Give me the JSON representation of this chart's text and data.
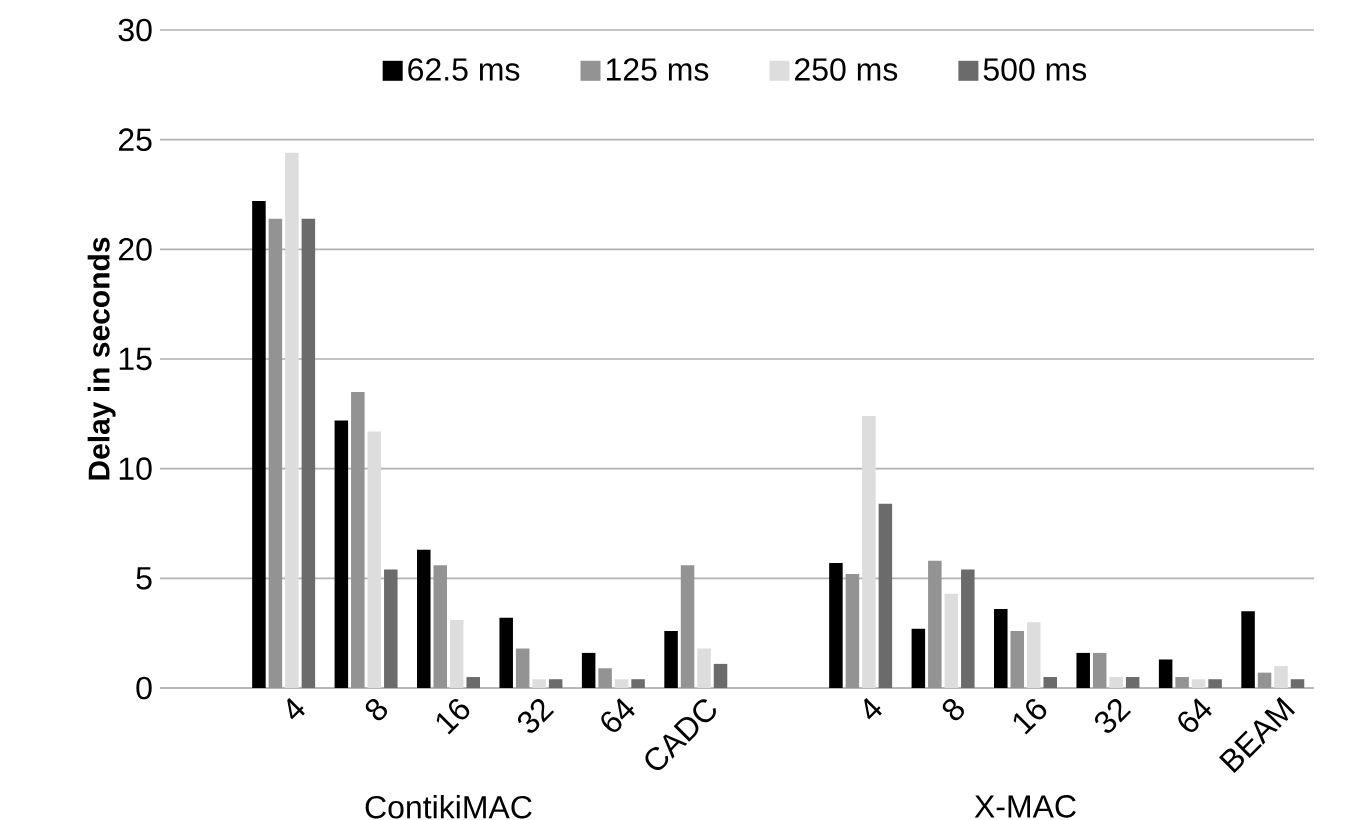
{
  "chart_data": {
    "type": "bar",
    "ylabel": "Delay in seconds",
    "categories": [
      null,
      "4",
      "8",
      "16",
      "32",
      "64",
      "CADC",
      null,
      "4",
      "8",
      "16",
      "32",
      "64",
      "BEAM"
    ],
    "series": [
      {
        "name": "62.5 ms",
        "color": "#000000",
        "values": [
          null,
          22.2,
          12.2,
          6.3,
          3.2,
          1.6,
          2.6,
          null,
          5.7,
          2.7,
          3.6,
          1.6,
          1.3,
          3.5
        ]
      },
      {
        "name": "125 ms",
        "color": "#939393",
        "values": [
          null,
          21.4,
          13.5,
          5.6,
          1.8,
          0.9,
          5.6,
          null,
          5.2,
          5.8,
          2.6,
          1.6,
          0.5,
          0.7
        ]
      },
      {
        "name": "250 ms",
        "color": "#dddddd",
        "values": [
          null,
          24.4,
          11.7,
          3.1,
          0.4,
          0.4,
          1.8,
          null,
          12.4,
          4.3,
          3.0,
          0.5,
          0.4,
          1.0
        ]
      },
      {
        "name": "500 ms",
        "color": "#6b6b6b",
        "values": [
          null,
          21.4,
          5.4,
          0.5,
          0.4,
          0.4,
          1.1,
          null,
          8.4,
          5.4,
          0.5,
          0.5,
          0.4,
          0.4
        ]
      }
    ],
    "ylim": [
      0,
      30
    ],
    "yticks": [
      0,
      5,
      10,
      15,
      20,
      25,
      30
    ],
    "grid": "y",
    "legend": "top",
    "annotations": [
      "ContikiMAC",
      "X-MAC"
    ]
  }
}
